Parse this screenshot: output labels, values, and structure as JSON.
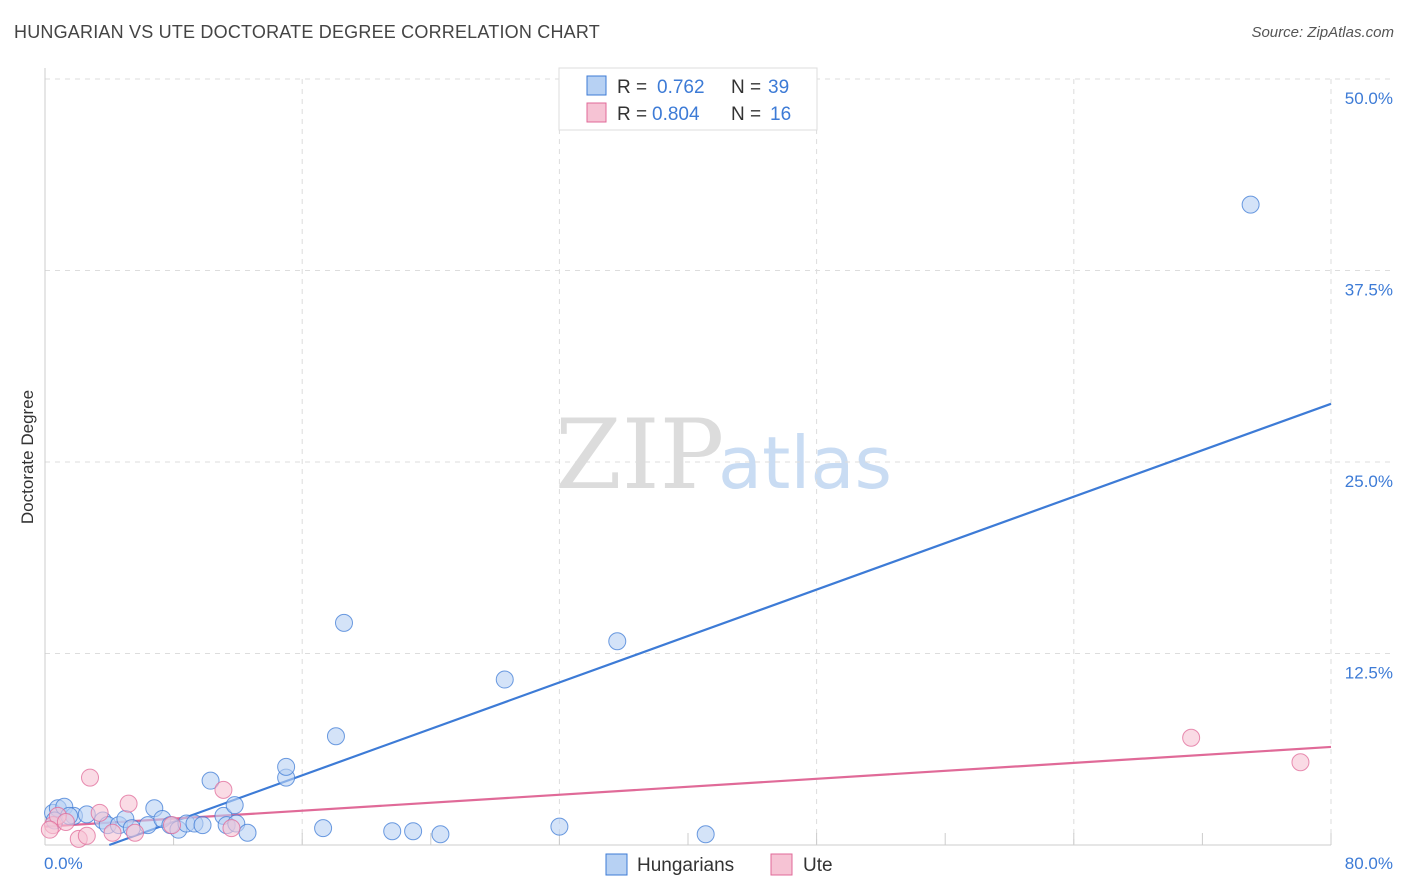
{
  "title": "HUNGARIAN VS UTE DOCTORATE DEGREE CORRELATION CHART",
  "source": "Source: ZipAtlas.com",
  "watermark": {
    "zip": "ZIP",
    "atlas": "atlas"
  },
  "colors": {
    "blue": "#3d7bd6",
    "blue_fill": "#b7d1f3",
    "pink": "#e06a98",
    "pink_fill": "#f6c3d4",
    "grid": "#dddddd"
  },
  "legend": {
    "rows": [
      {
        "r_label": "R =",
        "r_value": "0.762",
        "n_label": "N =",
        "n_value": "39",
        "series": "hungarians"
      },
      {
        "r_label": "R =",
        "r_value": "0.804",
        "n_label": "N =",
        "n_value": "16",
        "series": "ute"
      }
    ]
  },
  "chart_data": {
    "type": "scatter",
    "title": "HUNGARIAN VS UTE DOCTORATE DEGREE CORRELATION CHART",
    "xlabel": "",
    "ylabel": "Doctorate Degree",
    "xlim": [
      0,
      80
    ],
    "ylim": [
      0,
      50
    ],
    "x_tick_labels": [
      "0.0%",
      "80.0%"
    ],
    "y_ticks": [
      12.5,
      25.0,
      37.5,
      50.0
    ],
    "y_tick_labels": [
      "12.5%",
      "25.0%",
      "37.5%",
      "50.0%"
    ],
    "grid": true,
    "legend_position": "bottom-center",
    "series": [
      {
        "name": "Hungarians",
        "color": "#3d7bd6",
        "R": 0.762,
        "N": 39,
        "trendline": {
          "x": [
            4.0,
            80.0
          ],
          "y": [
            0.0,
            28.8
          ]
        },
        "points": [
          [
            0.5,
            2.1
          ],
          [
            0.8,
            2.4
          ],
          [
            1.2,
            2.5
          ],
          [
            1.8,
            1.9
          ],
          [
            2.6,
            2.0
          ],
          [
            3.6,
            1.6
          ],
          [
            3.9,
            1.3
          ],
          [
            4.6,
            1.3
          ],
          [
            5.0,
            1.7
          ],
          [
            5.4,
            1.1
          ],
          [
            6.4,
            1.3
          ],
          [
            6.8,
            2.4
          ],
          [
            7.3,
            1.7
          ],
          [
            7.8,
            1.3
          ],
          [
            8.3,
            1.0
          ],
          [
            8.8,
            1.4
          ],
          [
            9.3,
            1.4
          ],
          [
            9.8,
            1.3
          ],
          [
            10.3,
            4.2
          ],
          [
            11.1,
            1.9
          ],
          [
            11.3,
            1.3
          ],
          [
            11.8,
            2.6
          ],
          [
            11.9,
            1.4
          ],
          [
            12.6,
            0.8
          ],
          [
            15.0,
            4.4
          ],
          [
            15.0,
            5.1
          ],
          [
            17.3,
            1.1
          ],
          [
            18.1,
            7.1
          ],
          [
            18.6,
            14.5
          ],
          [
            21.6,
            0.9
          ],
          [
            22.9,
            0.9
          ],
          [
            24.6,
            0.7
          ],
          [
            28.6,
            10.8
          ],
          [
            32.0,
            1.2
          ],
          [
            35.6,
            13.3
          ],
          [
            41.1,
            0.7
          ],
          [
            75.0,
            41.8
          ],
          [
            0.6,
            1.6
          ],
          [
            1.5,
            1.9
          ]
        ]
      },
      {
        "name": "Ute",
        "color": "#e06a98",
        "R": 0.804,
        "N": 16,
        "trendline": {
          "x": [
            0.0,
            80.0
          ],
          "y": [
            1.2,
            6.4
          ]
        },
        "points": [
          [
            0.5,
            1.3
          ],
          [
            0.8,
            1.9
          ],
          [
            1.3,
            1.5
          ],
          [
            2.1,
            0.4
          ],
          [
            2.6,
            0.6
          ],
          [
            2.8,
            4.4
          ],
          [
            3.4,
            2.1
          ],
          [
            4.2,
            0.8
          ],
          [
            5.2,
            2.7
          ],
          [
            5.6,
            0.8
          ],
          [
            7.9,
            1.3
          ],
          [
            11.1,
            3.6
          ],
          [
            11.6,
            1.1
          ],
          [
            71.3,
            7.0
          ],
          [
            78.1,
            5.4
          ],
          [
            0.3,
            1.0
          ]
        ]
      }
    ]
  }
}
